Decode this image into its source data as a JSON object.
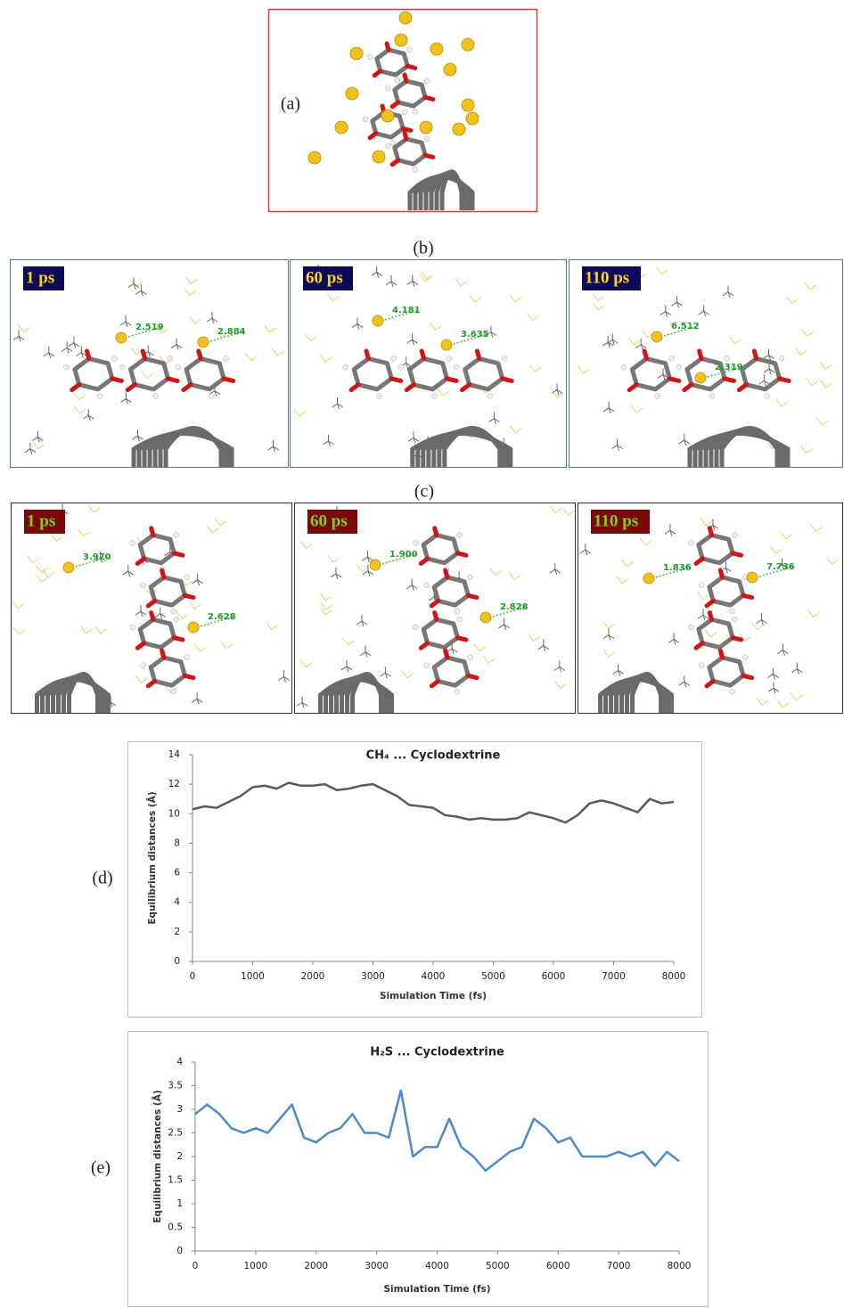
{
  "figure_labels": [
    "(a)",
    "(b)",
    "(c)",
    "(d)",
    "(e)"
  ],
  "snapshots_b": [
    {
      "time": "1 ps",
      "distances": [
        "2.519",
        "2.884"
      ]
    },
    {
      "time": "60 ps",
      "distances": [
        "4.181",
        "3.635"
      ]
    },
    {
      "time": "110 ps",
      "distances": [
        "6.512",
        "2.319"
      ]
    }
  ],
  "snapshots_c": [
    {
      "time": "1 ps",
      "distances": [
        "3.970",
        "2.628"
      ]
    },
    {
      "time": "60 ps",
      "distances": [
        "1.900",
        "2.828"
      ]
    },
    {
      "time": "110 ps",
      "distances": [
        "1.836",
        "7.736"
      ]
    }
  ],
  "chart_data": [
    {
      "type": "line",
      "title": "CH₄ ... Cyclodextrine",
      "xlabel": "Simulation Time (fs)",
      "ylabel": "Equilibrium distances (Å)",
      "x": [
        0,
        200,
        400,
        600,
        800,
        1000,
        1200,
        1400,
        1600,
        1800,
        2000,
        2200,
        2400,
        2600,
        2800,
        3000,
        3200,
        3400,
        3600,
        3800,
        4000,
        4200,
        4400,
        4600,
        4800,
        5000,
        5200,
        5400,
        5600,
        5800,
        6000,
        6200,
        6400,
        6600,
        6800,
        7000,
        7200,
        7400,
        7600,
        7800,
        8000
      ],
      "values": [
        10.3,
        10.5,
        10.4,
        10.8,
        11.2,
        11.8,
        11.9,
        11.7,
        12.1,
        11.9,
        11.9,
        12.0,
        11.6,
        11.7,
        11.9,
        12.0,
        11.6,
        11.2,
        10.6,
        10.5,
        10.4,
        9.9,
        9.8,
        9.6,
        9.7,
        9.6,
        9.6,
        9.7,
        10.1,
        9.9,
        9.7,
        9.4,
        9.9,
        10.7,
        10.9,
        10.7,
        10.4,
        10.1,
        11.0,
        10.7,
        10.8
      ],
      "color": "#5a5a5a",
      "xlim": [
        0,
        8000
      ],
      "xticks": [
        0,
        1000,
        2000,
        3000,
        4000,
        5000,
        6000,
        7000,
        8000
      ],
      "ylim": [
        0,
        14
      ],
      "yticks": [
        0,
        2,
        4,
        6,
        8,
        10,
        12,
        14
      ],
      "grid": false
    },
    {
      "type": "line",
      "title": "H₂S ... Cyclodextrine",
      "xlabel": "Simulation Time (fs)",
      "ylabel": "Equilibrium distances (Å)",
      "x": [
        0,
        200,
        400,
        600,
        800,
        1000,
        1200,
        1400,
        1600,
        1800,
        2000,
        2200,
        2400,
        2600,
        2800,
        3000,
        3200,
        3400,
        3600,
        3800,
        4000,
        4200,
        4400,
        4600,
        4800,
        5000,
        5200,
        5400,
        5600,
        5800,
        6000,
        6200,
        6400,
        6600,
        6800,
        7000,
        7200,
        7400,
        7600,
        7800,
        8000
      ],
      "values": [
        2.9,
        3.1,
        2.9,
        2.6,
        2.5,
        2.6,
        2.5,
        2.8,
        3.1,
        2.4,
        2.3,
        2.5,
        2.6,
        2.9,
        2.5,
        2.5,
        2.4,
        3.4,
        2.0,
        2.2,
        2.2,
        2.8,
        2.2,
        2.0,
        1.7,
        1.9,
        2.1,
        2.2,
        2.8,
        2.6,
        2.3,
        2.4,
        2.0,
        2.0,
        2.0,
        2.1,
        2.0,
        2.1,
        1.8,
        2.1,
        1.9
      ],
      "color": "#4a8ac8",
      "xlim": [
        0,
        8000
      ],
      "xticks": [
        0,
        1000,
        2000,
        3000,
        4000,
        5000,
        6000,
        7000,
        8000
      ],
      "ylim": [
        0,
        4
      ],
      "yticks": [
        0,
        0.5,
        1,
        1.5,
        2,
        2.5,
        3,
        3.5,
        4
      ],
      "grid": false
    }
  ]
}
